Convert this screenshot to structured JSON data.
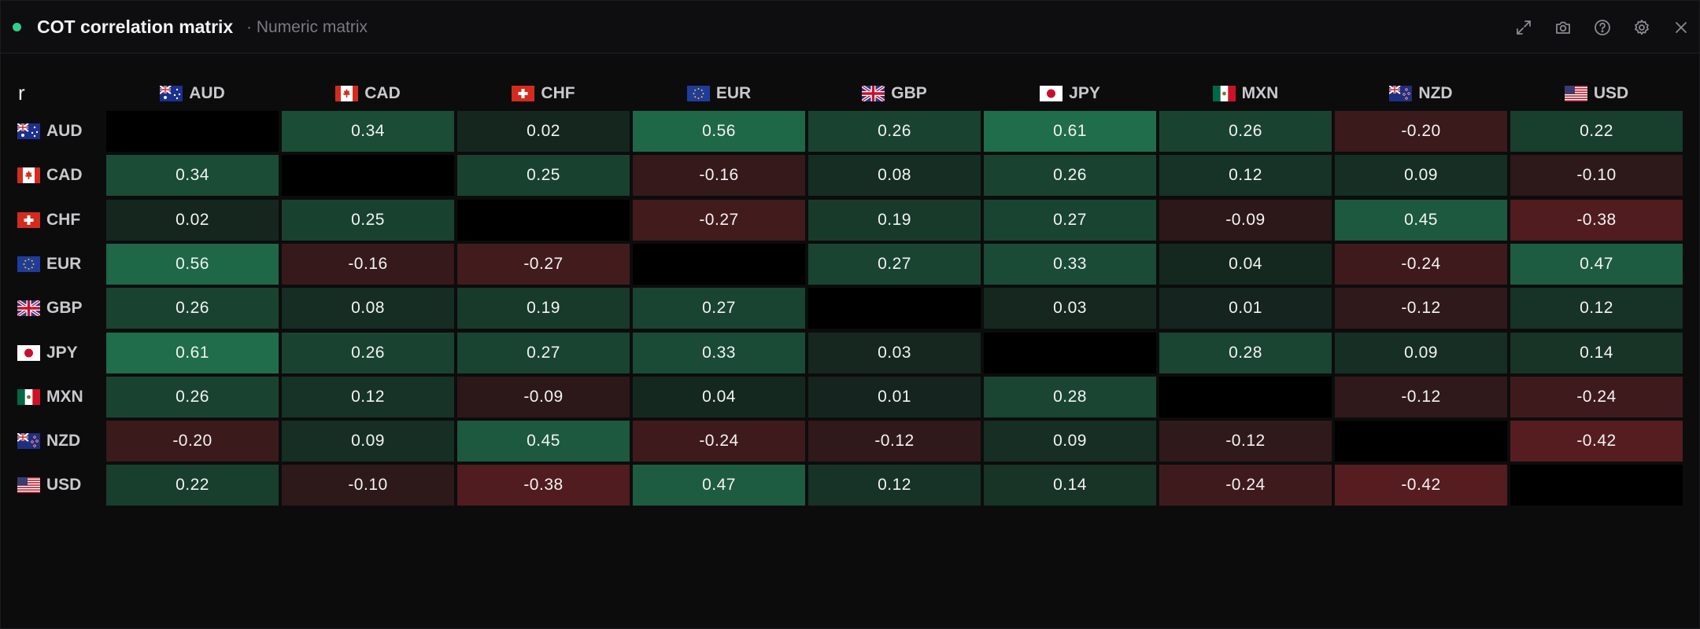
{
  "header": {
    "title": "COT correlation matrix",
    "subtitle": "· Numeric matrix",
    "status_color": "#2fd08a",
    "tools": [
      "expand-icon",
      "camera-icon",
      "help-icon",
      "settings-icon",
      "close-icon"
    ]
  },
  "colors": {
    "positive": "#1f6e4b",
    "negative": "#6e1f24",
    "diagonal": "#000000",
    "neutral": "#131615"
  },
  "chart_data": {
    "type": "heatmap",
    "corner_label": "r",
    "labels": [
      "AUD",
      "CAD",
      "CHF",
      "EUR",
      "GBP",
      "JPY",
      "MXN",
      "NZD",
      "USD"
    ],
    "flags": [
      "au",
      "ca",
      "ch",
      "eu",
      "gb",
      "jp",
      "mx",
      "nz",
      "us"
    ],
    "matrix": [
      [
        null,
        0.34,
        0.02,
        0.56,
        0.26,
        0.61,
        0.26,
        -0.2,
        0.22
      ],
      [
        0.34,
        null,
        0.25,
        -0.16,
        0.08,
        0.26,
        0.12,
        0.09,
        -0.1
      ],
      [
        0.02,
        0.25,
        null,
        -0.27,
        0.19,
        0.27,
        -0.09,
        0.45,
        -0.38
      ],
      [
        0.56,
        -0.16,
        -0.27,
        null,
        0.27,
        0.33,
        0.04,
        -0.24,
        0.47
      ],
      [
        0.26,
        0.08,
        0.19,
        0.27,
        null,
        0.03,
        0.01,
        -0.12,
        0.12
      ],
      [
        0.61,
        0.26,
        0.27,
        0.33,
        0.03,
        null,
        0.28,
        0.09,
        0.14
      ],
      [
        0.26,
        0.12,
        -0.09,
        0.04,
        0.01,
        0.28,
        null,
        -0.12,
        -0.24
      ],
      [
        -0.2,
        0.09,
        0.45,
        -0.24,
        -0.12,
        0.09,
        -0.12,
        null,
        -0.42
      ],
      [
        0.22,
        -0.1,
        -0.38,
        0.47,
        0.12,
        0.14,
        -0.24,
        -0.42,
        null
      ]
    ],
    "display": [
      [
        "",
        "0.34",
        "0.02",
        "0.56",
        "0.26",
        "0.61",
        "0.26",
        "-0.20",
        "0.22"
      ],
      [
        "0.34",
        "",
        "0.25",
        "-0.16",
        "0.08",
        "0.26",
        "0.12",
        "0.09",
        "-0.10"
      ],
      [
        "0.02",
        "0.25",
        "",
        "-0.27",
        "0.19",
        "0.27",
        "-0.09",
        "0.45",
        "-0.38"
      ],
      [
        "0.56",
        "-0.16",
        "-0.27",
        "",
        "0.27",
        "0.33",
        "0.04",
        "-0.24",
        "0.47"
      ],
      [
        "0.26",
        "0.08",
        "0.19",
        "0.27",
        "",
        "0.03",
        "0.01",
        "-0.12",
        "0.12"
      ],
      [
        "0.61",
        "0.26",
        "0.27",
        "0.33",
        "0.03",
        "",
        "0.28",
        "0.09",
        "0.14"
      ],
      [
        "0.26",
        "0.12",
        "-0.09",
        "0.04",
        "0.01",
        "0.28",
        "",
        "-0.12",
        "-0.24"
      ],
      [
        "-0.20",
        "0.09",
        "0.45",
        "-0.24",
        "-0.12",
        "0.09",
        "-0.12",
        "",
        "-0.42"
      ],
      [
        "0.22",
        "-0.10",
        "-0.38",
        "0.47",
        "0.12",
        "0.14",
        "-0.24",
        "-0.42",
        ""
      ]
    ]
  }
}
